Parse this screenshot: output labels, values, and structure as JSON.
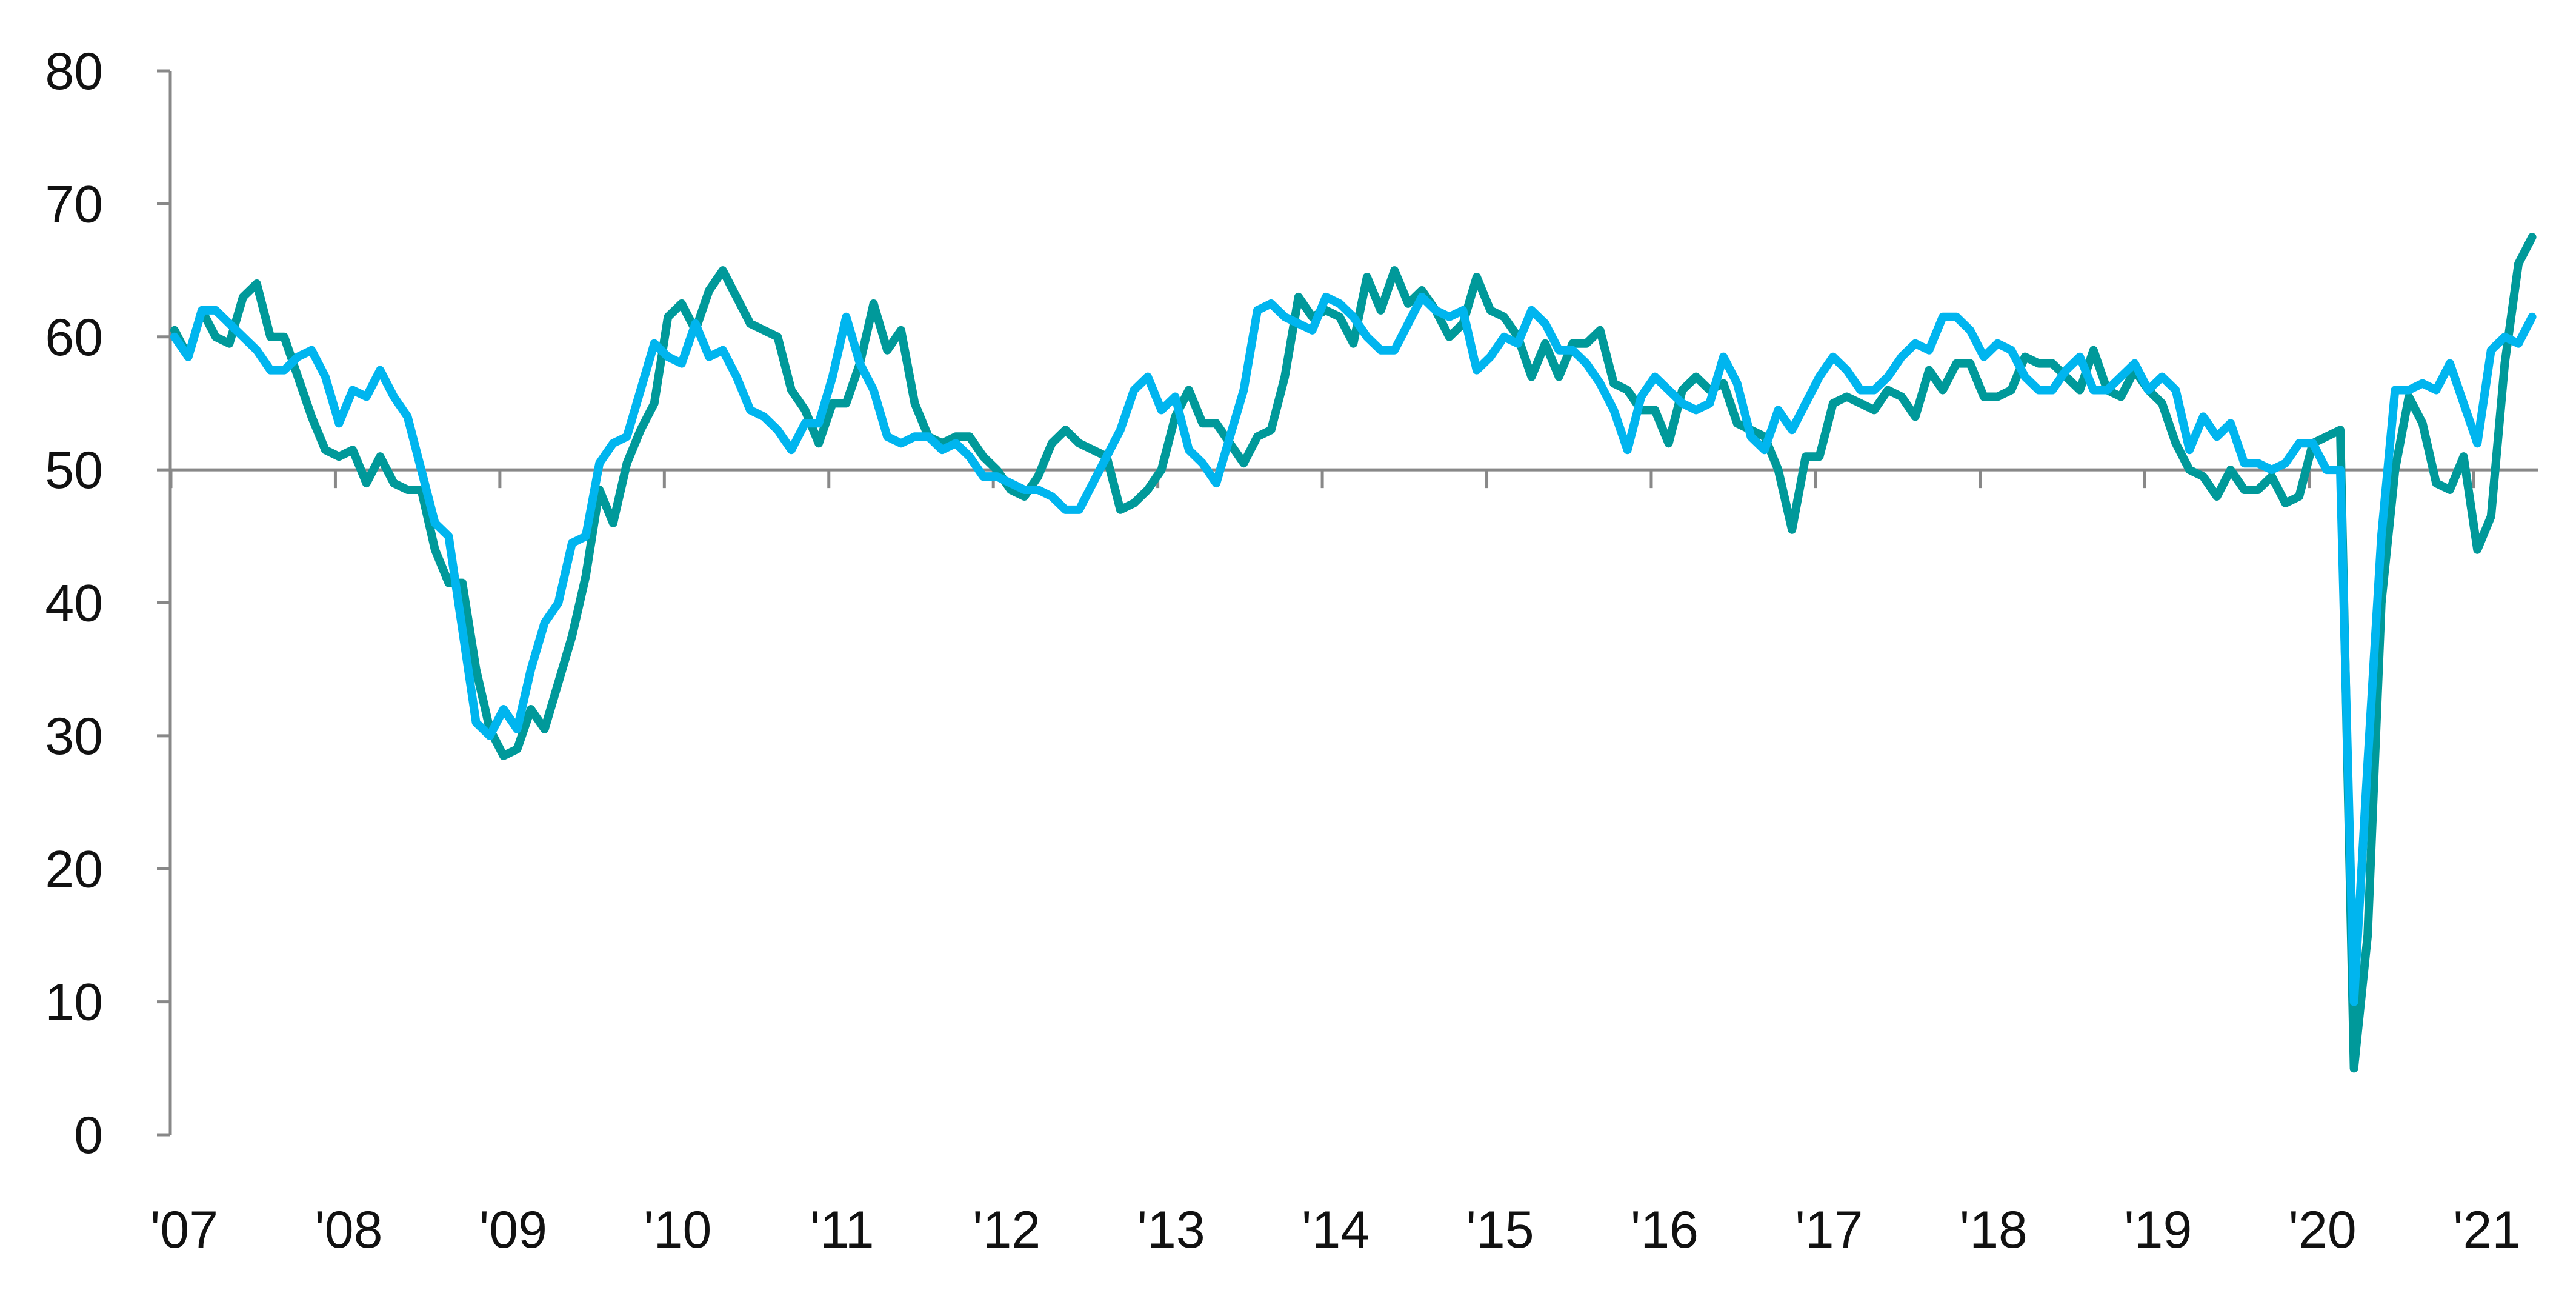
{
  "chart_data": {
    "type": "line",
    "title": "",
    "xlabel": "",
    "ylabel": "",
    "ylim": [
      0,
      80
    ],
    "yticks": [
      0,
      10,
      20,
      30,
      40,
      50,
      60,
      70,
      80
    ],
    "reference_line": 50,
    "x_start": "2007-01",
    "x_frequency": "monthly",
    "xtick_labels": [
      "'07",
      "'08",
      "'09",
      "'10",
      "'11",
      "'12",
      "'13",
      "'14",
      "'15",
      "'16",
      "'17",
      "'18",
      "'19",
      "'20",
      "'21"
    ],
    "grid": false,
    "legend": "none",
    "series": [
      {
        "color": "#00999A",
        "values": [
          60.5,
          58.5,
          62,
          60,
          59.5,
          63,
          64,
          60,
          60,
          57,
          54,
          51.5,
          51,
          51.5,
          49,
          51,
          49,
          48.5,
          48.5,
          44,
          41.5,
          41.5,
          35,
          30.5,
          28.5,
          29,
          32,
          30.5,
          34,
          37.5,
          42,
          48.5,
          46,
          50.5,
          53,
          55,
          61.5,
          62.5,
          60.5,
          63.5,
          65,
          63,
          61,
          60.5,
          60,
          56,
          54.5,
          52,
          55,
          55,
          58,
          62.5,
          59,
          60.5,
          55,
          52.5,
          52,
          52.5,
          52.5,
          51,
          50,
          48.5,
          48,
          49.5,
          52,
          53,
          52,
          51.5,
          51,
          47,
          47.5,
          48.5,
          50,
          54,
          56,
          53.5,
          53.5,
          52,
          50.5,
          52.5,
          53,
          57,
          63,
          61.5,
          62,
          61.5,
          59.5,
          64.5,
          62,
          65,
          62.5,
          63.5,
          62,
          60,
          61,
          64.5,
          62,
          61.5,
          60,
          57,
          59.5,
          57,
          59.5,
          59.5,
          60.5,
          56.5,
          56,
          54.5,
          54.5,
          52,
          56,
          57,
          56,
          56.5,
          53.5,
          53,
          52.5,
          50,
          45.5,
          51,
          51,
          55,
          55.5,
          55,
          54.5,
          56,
          55.5,
          54,
          57.5,
          56,
          58,
          58,
          55.5,
          55.5,
          56,
          58.5,
          58,
          58,
          57,
          56,
          59,
          56,
          55.5,
          57.5,
          56,
          55,
          52,
          50,
          49.5,
          48,
          50,
          48.5,
          48.5,
          49.5,
          47.5,
          48,
          52,
          52.5,
          53,
          5,
          15,
          40,
          50,
          55.5,
          53.5,
          49,
          48.5,
          51,
          44,
          46.5,
          58,
          65.5,
          67.5
        ]
      },
      {
        "color": "#00B5EF",
        "values": [
          60,
          58.5,
          62,
          62,
          61,
          60,
          59,
          57.5,
          57.5,
          58.5,
          59,
          57,
          53.5,
          56,
          55.5,
          57.5,
          55.5,
          54,
          50,
          46,
          45,
          38,
          31,
          30,
          32,
          30.5,
          35,
          38.5,
          40,
          44.5,
          45,
          50.5,
          52,
          52.5,
          56,
          59.5,
          58.5,
          58,
          61,
          58.5,
          59,
          57,
          54.5,
          54,
          53,
          51.5,
          53.5,
          53.5,
          57,
          61.5,
          58,
          56,
          52.5,
          52,
          52.5,
          52.5,
          51.5,
          52,
          51,
          49.5,
          49.5,
          49,
          48.5,
          48.5,
          48,
          47,
          47,
          49,
          51,
          53,
          56,
          57,
          54.5,
          55.5,
          51.5,
          50.5,
          49,
          52.5,
          56,
          62,
          62.5,
          61.5,
          61,
          60.5,
          63,
          62.5,
          61.5,
          60,
          59,
          59,
          61,
          63,
          62,
          61.5,
          62,
          57.5,
          58.5,
          60,
          59.5,
          62,
          61,
          59,
          59,
          58,
          56.5,
          54.5,
          51.5,
          55.5,
          57,
          56,
          55,
          54.5,
          55,
          58.5,
          56.5,
          52.5,
          51.5,
          54.5,
          53,
          55,
          57,
          58.5,
          57.5,
          56,
          56,
          57,
          58.5,
          59.5,
          59,
          61.5,
          61.5,
          60.5,
          58.5,
          59.5,
          59,
          57,
          56,
          56,
          57.5,
          58.5,
          56,
          56,
          57,
          58,
          56,
          57,
          56,
          51.5,
          54,
          52.5,
          53.5,
          50.5,
          50.5,
          50,
          50.5,
          52,
          52,
          50,
          50,
          10,
          28,
          45,
          56,
          56,
          56.5,
          56,
          58,
          55,
          52,
          59,
          60,
          59.5,
          61.5
        ]
      }
    ]
  }
}
